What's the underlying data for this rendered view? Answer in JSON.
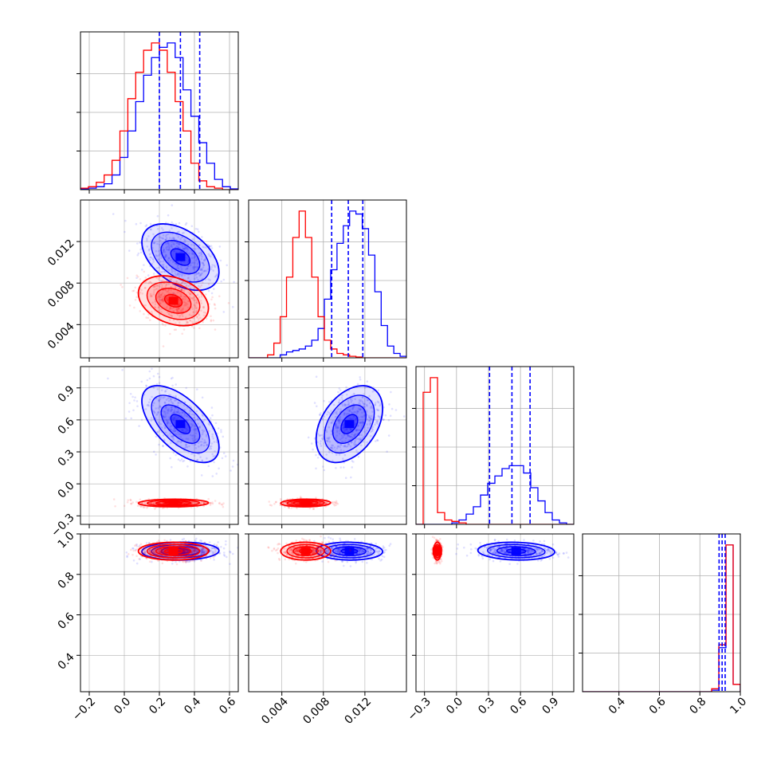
{
  "chart_data": {
    "type": "corner",
    "colors": {
      "blue": "#0000ff",
      "red": "#ff0000",
      "grid": "#b0b0b0",
      "frame": "#000000"
    },
    "parameters": [
      {
        "range": [
          -0.25,
          0.65
        ],
        "ticks": [
          -0.2,
          0.0,
          0.2,
          0.4,
          0.6
        ],
        "tick_labels": [
          "−0.2",
          "0.0",
          "0.2",
          "0.4",
          "0.6"
        ]
      },
      {
        "range": [
          0.0008,
          0.016
        ],
        "ticks": [
          0.004,
          0.008,
          0.012
        ],
        "tick_labels": [
          "0.004",
          "0.008",
          "0.012"
        ]
      },
      {
        "range": [
          -0.38,
          1.1
        ],
        "ticks": [
          -0.3,
          0.0,
          0.3,
          0.6,
          0.9
        ],
        "tick_labels": [
          "−0.3",
          "0.0",
          "0.3",
          "0.6",
          "0.9"
        ]
      },
      {
        "range": [
          0.22,
          1.0
        ],
        "ticks": [
          0.4,
          0.6,
          0.8,
          1.0
        ],
        "tick_labels": [
          "0.4",
          "0.6",
          "0.8",
          "1.0"
        ]
      }
    ],
    "series": [
      {
        "color": "blue",
        "means": [
          0.32,
          0.0105,
          0.56,
          0.915
        ],
        "sigmas": [
          0.11,
          0.0016,
          0.18,
          0.022
        ],
        "correlations": [
          [
            0,
            1,
            -0.45
          ],
          [
            0,
            2,
            -0.6
          ],
          [
            1,
            2,
            0.4
          ],
          [
            0,
            3,
            0.05
          ],
          [
            1,
            3,
            -0.05
          ],
          [
            2,
            3,
            -0.1
          ]
        ],
        "quantiles": [
          [
            0.2,
            0.32,
            0.43
          ],
          [
            0.0088,
            0.0104,
            0.0118
          ],
          [
            0.31,
            0.52,
            0.69
          ],
          [
            0.895,
            0.91,
            0.925
          ]
        ],
        "histograms": [
          [
            0.005,
            0.01,
            0.02,
            0.04,
            0.1,
            0.22,
            0.4,
            0.6,
            0.78,
            0.9,
            0.97,
            1.0,
            0.9,
            0.68,
            0.5,
            0.32,
            0.18,
            0.07,
            0.02,
            0.005
          ],
          [
            0,
            0,
            0,
            0,
            0,
            0.02,
            0.04,
            0.05,
            0.06,
            0.08,
            0.12,
            0.2,
            0.4,
            0.6,
            0.78,
            0.9,
            1.0,
            0.98,
            0.88,
            0.7,
            0.45,
            0.22,
            0.08,
            0.03,
            0.01
          ],
          [
            0,
            0,
            0,
            0,
            0,
            0.01,
            0.03,
            0.07,
            0.12,
            0.2,
            0.28,
            0.33,
            0.38,
            0.4,
            0.4,
            0.35,
            0.25,
            0.16,
            0.08,
            0.03,
            0.01,
            0
          ],
          [
            0,
            0,
            0,
            0,
            0,
            0,
            0,
            0,
            0,
            0,
            0,
            0,
            0,
            0,
            0,
            0,
            0,
            0,
            0.01,
            0.3,
            1.0,
            0.05
          ]
        ]
      },
      {
        "color": "red",
        "means": [
          0.28,
          0.0063,
          -0.18,
          0.915
        ],
        "sigmas": [
          0.1,
          0.0012,
          0.018,
          0.022
        ],
        "correlations": [
          [
            0,
            1,
            -0.3
          ],
          [
            0,
            2,
            0.05
          ],
          [
            1,
            2,
            0.05
          ],
          [
            0,
            3,
            0.0
          ],
          [
            1,
            3,
            0.0
          ],
          [
            2,
            3,
            0.0
          ]
        ],
        "histograms": [
          [
            0.01,
            0.02,
            0.05,
            0.1,
            0.2,
            0.4,
            0.62,
            0.8,
            0.95,
            1.0,
            0.95,
            0.8,
            0.6,
            0.4,
            0.18,
            0.06,
            0.02,
            0.01,
            0,
            0
          ],
          [
            0,
            0,
            0,
            0.02,
            0.1,
            0.28,
            0.55,
            0.82,
            1.0,
            0.82,
            0.55,
            0.28,
            0.12,
            0.06,
            0.03,
            0.02,
            0.01,
            0.005,
            0,
            0,
            0,
            0,
            0,
            0,
            0
          ],
          [
            0,
            0.9,
            1.0,
            0.08,
            0.03,
            0.02,
            0.01,
            0,
            0,
            0,
            0,
            0,
            0,
            0,
            0,
            0,
            0,
            0,
            0,
            0,
            0,
            0
          ],
          [
            0,
            0,
            0,
            0,
            0,
            0,
            0,
            0,
            0,
            0,
            0,
            0,
            0,
            0,
            0,
            0,
            0,
            0,
            0.02,
            0.32,
            1.0,
            0.05
          ]
        ]
      }
    ],
    "grid": true
  }
}
